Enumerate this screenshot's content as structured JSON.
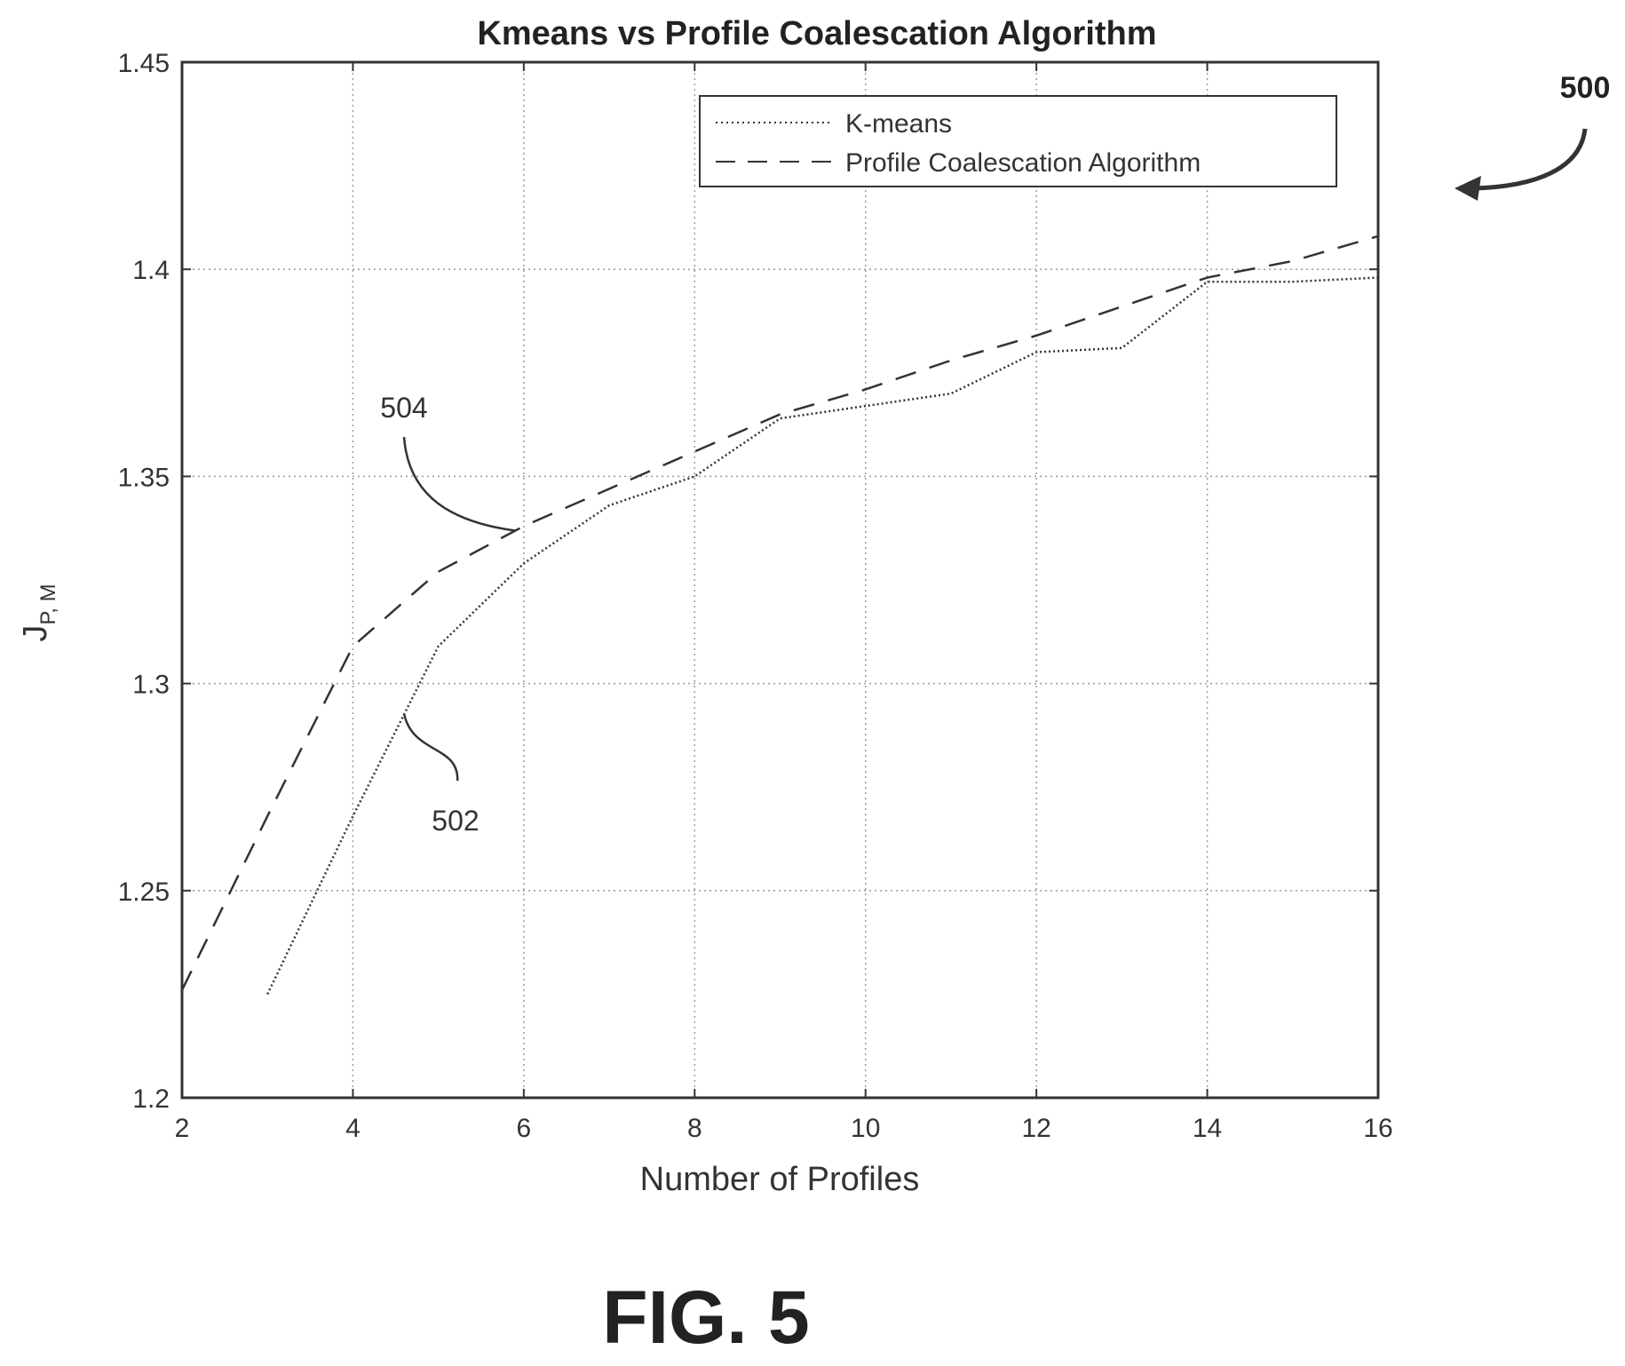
{
  "chart_data": {
    "type": "line",
    "title": "Kmeans vs Profile Coalescation Algorithm",
    "xlabel": "Number of Profiles",
    "ylabel_main": "J",
    "ylabel_sub": "P, M",
    "xlim": [
      2,
      16
    ],
    "ylim": [
      1.2,
      1.45
    ],
    "xticks": [
      2,
      4,
      6,
      8,
      10,
      12,
      14,
      16
    ],
    "yticks": [
      1.2,
      1.25,
      1.3,
      1.35,
      1.4,
      1.45
    ],
    "xtick_labels": [
      "2",
      "4",
      "6",
      "8",
      "10",
      "12",
      "14",
      "16"
    ],
    "ytick_labels": [
      "1.2",
      "1.25",
      "1.3",
      "1.35",
      "1.4",
      "1.45"
    ],
    "grid": true,
    "legend_position": "top-right",
    "series": [
      {
        "name": "K-means",
        "style": "dotted",
        "x": [
          3,
          4,
          5,
          6,
          7,
          8,
          9,
          10,
          11,
          12,
          13,
          14,
          15,
          16
        ],
        "y": [
          1.225,
          1.268,
          1.309,
          1.329,
          1.343,
          1.35,
          1.364,
          1.367,
          1.37,
          1.38,
          1.381,
          1.397,
          1.397,
          1.398
        ]
      },
      {
        "name": "Profile Coalescation Algorithm",
        "style": "dashed",
        "x": [
          2,
          3,
          4,
          5,
          6,
          7,
          8,
          9,
          10,
          11,
          12,
          13,
          14,
          15,
          16
        ],
        "y": [
          1.226,
          1.268,
          1.309,
          1.327,
          1.338,
          1.347,
          1.356,
          1.365,
          1.371,
          1.378,
          1.384,
          1.391,
          1.398,
          1.402,
          1.408
        ]
      }
    ],
    "annotations": [
      {
        "text": "504",
        "points_to_series": "Profile Coalescation Algorithm",
        "at_x": 5.9
      },
      {
        "text": "502",
        "points_to_series": "K-means",
        "at_x": 4.6
      }
    ]
  },
  "figure": {
    "ref_number": "500",
    "caption": "FIG. 5"
  },
  "colors": {
    "line": "#333333",
    "grid": "#9a9a9a",
    "axes": "#333333"
  }
}
